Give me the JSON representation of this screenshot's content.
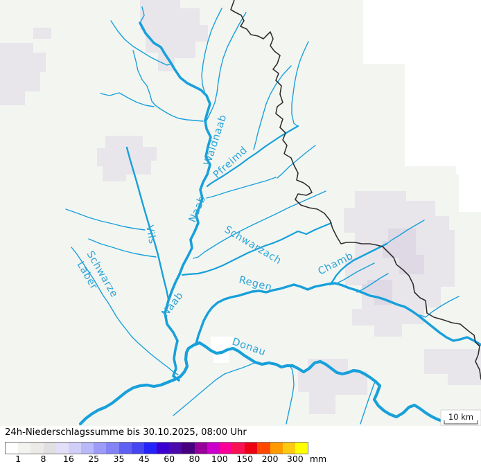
{
  "map": {
    "river_labels": [
      {
        "id": "waldnaab",
        "label": "Waldnaab"
      },
      {
        "id": "pfreimd",
        "label": "Pfreimd"
      },
      {
        "id": "naab-upper",
        "label": "Naab"
      },
      {
        "id": "vils",
        "label": "Vils"
      },
      {
        "id": "schwarzach",
        "label": "Schwarzach"
      },
      {
        "id": "schwarze",
        "label": "Schwarze"
      },
      {
        "id": "laber",
        "label": "Laber"
      },
      {
        "id": "chamb",
        "label": "Chamb"
      },
      {
        "id": "regen",
        "label": "Regen"
      },
      {
        "id": "naab-lower",
        "label": "Naab"
      },
      {
        "id": "donau",
        "label": "Donau"
      }
    ],
    "scale_bar_label": "10 km",
    "colors": {
      "river": "#18a0da",
      "river_label": "#2ba4d8",
      "country_border": "#2f2f2f",
      "land": "#f3f5f1",
      "no_data": "#ffffff",
      "precip_light": "#e8e5eb",
      "precip_dark": "#ded9e5"
    }
  },
  "legend": {
    "title": "24h-Niederschlagssumme bis 30.10.2025, 08:00 Uhr",
    "unit": "mm",
    "tick_labels": [
      "1",
      "8",
      "16",
      "25",
      "35",
      "45",
      "60",
      "80",
      "100",
      "150",
      "200",
      "300"
    ],
    "palette": [
      "#ffffff",
      "#f3f4f0",
      "#ebeae6",
      "#e2dfe2",
      "#e3dff8",
      "#d1cff8",
      "#b9b8f8",
      "#9c9bf7",
      "#8383f5",
      "#6060f2",
      "#4646f0",
      "#2424fa",
      "#3c00d0",
      "#4b0aac",
      "#47007e",
      "#99009b",
      "#cb00cb",
      "#fb0099",
      "#f81253",
      "#ee0013",
      "#ff4702",
      "#ff9b00",
      "#fdca11",
      "#ffff00"
    ]
  }
}
